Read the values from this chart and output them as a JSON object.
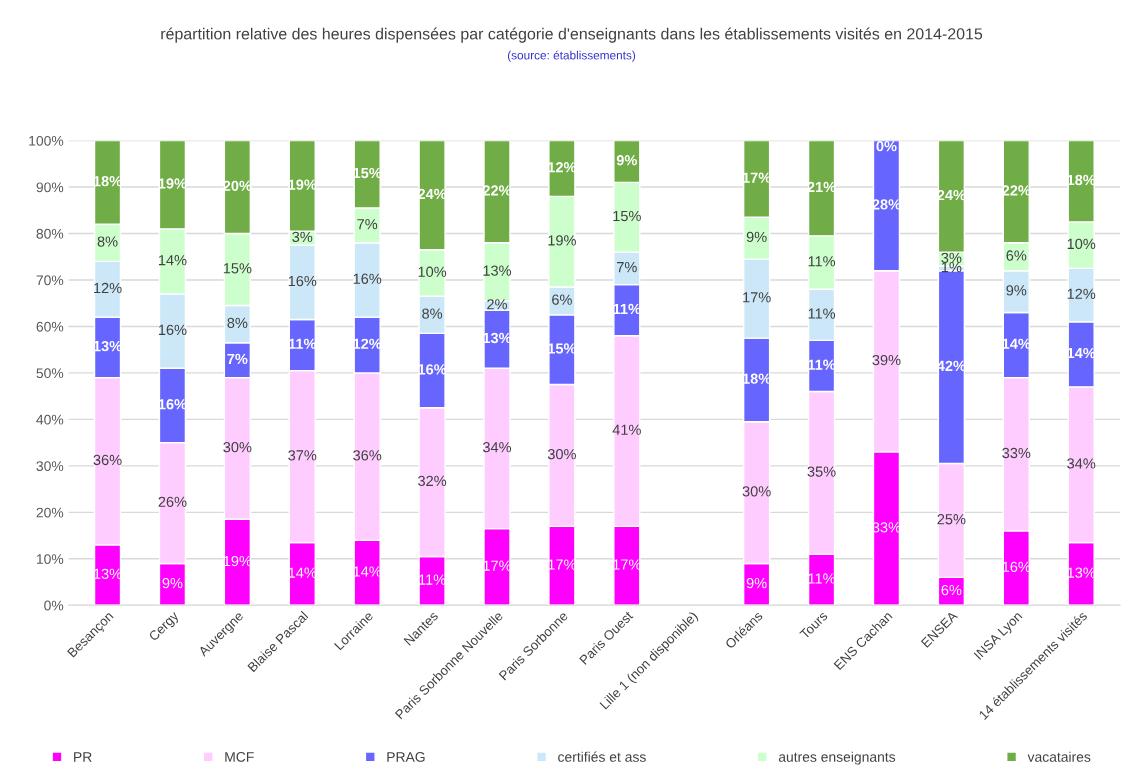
{
  "chart_data": {
    "type": "bar",
    "stacked": true,
    "title": "répartition relative des heures dispensées par catégorie d'enseignants dans les établissements visités en 2014-2015",
    "subtitle": "(source: établissements)",
    "categories": [
      "Besançon",
      "Cergy",
      "Auvergne",
      "Blaise Pascal",
      "Lorraine",
      "Nantes",
      "Paris Sorbonne Nouvelle",
      "Paris Sorbonne",
      "Paris Ouest",
      "Lille 1 (non disponible)",
      "Orléans",
      "Tours",
      "ENS Cachan",
      "ENSEA",
      "INSA Lyon",
      "14 établissements visités"
    ],
    "ylim": [
      0,
      100
    ],
    "yticks": [
      {
        "value": 0,
        "label": "0%"
      },
      {
        "value": 10,
        "label": "10%"
      },
      {
        "value": 20,
        "label": "20%"
      },
      {
        "value": 30,
        "label": "30%"
      },
      {
        "value": 40,
        "label": "40%"
      },
      {
        "value": 50,
        "label": "50%"
      },
      {
        "value": 60,
        "label": "60%"
      },
      {
        "value": 70,
        "label": "70%"
      },
      {
        "value": 80,
        "label": "80%"
      },
      {
        "value": 90,
        "label": "90%"
      },
      {
        "value": 100,
        "label": "100%"
      }
    ],
    "grid": "y",
    "legend": "bottom",
    "series": [
      {
        "name": "PR",
        "color": "#ff00ff",
        "values": [
          13,
          9,
          18.5,
          13.5,
          14,
          10.5,
          16.5,
          17,
          17,
          null,
          9,
          11,
          33,
          6,
          16,
          13.5
        ],
        "value_labels": [
          "13%",
          "9%",
          "19%",
          "14%",
          "14%",
          "11%",
          "17%",
          "17%",
          "17%",
          null,
          "9%",
          "11%",
          "33%",
          "6%",
          "16%",
          "13%"
        ]
      },
      {
        "name": "MCF",
        "color": "#ffccff",
        "values": [
          36,
          26,
          30.5,
          37,
          36,
          32,
          34.5,
          30.5,
          41,
          null,
          30.5,
          35,
          39,
          24.5,
          33,
          33.5
        ],
        "value_labels": [
          "36%",
          "26%",
          "30%",
          "37%",
          "36%",
          "32%",
          "34%",
          "30%",
          "41%",
          null,
          "30%",
          "35%",
          "39%",
          "25%",
          "33%",
          "34%"
        ]
      },
      {
        "name": "PRAG",
        "color": "#6666ff",
        "values": [
          13,
          16,
          7.5,
          11,
          12,
          16,
          12.5,
          15,
          11,
          null,
          18,
          11,
          28,
          41.5,
          14,
          14
        ],
        "value_labels": [
          "13%",
          "16%",
          "7%",
          "11%",
          "12%",
          "16%",
          "13%",
          "15%",
          "11%",
          null,
          "18%",
          "11%",
          "28%",
          "42%",
          "14%",
          "14%"
        ]
      },
      {
        "name": "certifiés et ass",
        "color": "#cce8f8",
        "values": [
          12,
          16,
          8,
          16,
          16,
          8,
          2,
          6,
          7,
          null,
          17,
          11,
          null,
          1,
          9,
          11.5
        ],
        "value_labels": [
          "12%",
          "16%",
          "8%",
          "16%",
          "16%",
          "8%",
          "2%",
          "6%",
          "7%",
          null,
          "17%",
          "11%",
          null,
          "1%",
          "9%",
          "12%"
        ]
      },
      {
        "name": "autres enseignants",
        "color": "#ccffcc",
        "values": [
          8,
          14,
          15.5,
          3,
          7.5,
          10,
          12.5,
          19.5,
          15,
          null,
          9,
          11.5,
          null,
          3,
          6,
          10
        ],
        "value_labels": [
          "8%",
          "14%",
          "15%",
          "3%",
          "7%",
          "10%",
          "13%",
          "19%",
          "15%",
          null,
          "9%",
          "11%",
          null,
          "3%",
          "6%",
          "10%"
        ]
      },
      {
        "name": "vacataires",
        "color": "#70ad47",
        "values": [
          18,
          19,
          20,
          19.5,
          14.5,
          23.5,
          22,
          12,
          9,
          null,
          16.5,
          20.5,
          0,
          24,
          22,
          17.5
        ],
        "value_labels": [
          "18%",
          "19%",
          "20%",
          "19%",
          "15%",
          "24%",
          "22%",
          "12%",
          "9%",
          null,
          "17%",
          "21%",
          "0%",
          "24%",
          "22%",
          "18%"
        ]
      }
    ]
  }
}
